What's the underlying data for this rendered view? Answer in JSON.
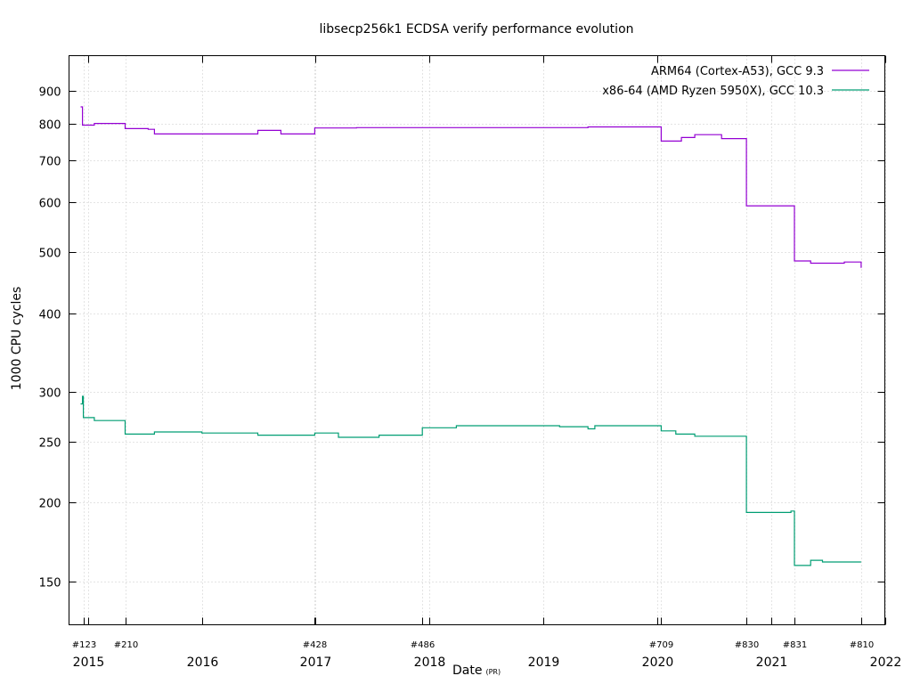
{
  "chart_data": {
    "type": "line",
    "title": "libsecp256k1 ECDSA verify performance evolution",
    "xlabel": "Date",
    "xlabel_suffix": "(PR)",
    "ylabel": "1000 CPU cycles",
    "y_scale": "log",
    "ylim": [
      128,
      1025
    ],
    "xlim": [
      "2014-11-01",
      "2022-01-01"
    ],
    "grid": true,
    "legend_position": "top-right",
    "y_ticks": [
      150,
      200,
      250,
      300,
      400,
      500,
      600,
      700,
      800,
      900
    ],
    "x_year_ticks": [
      {
        "date": "2015-01-01",
        "label": "2015"
      },
      {
        "date": "2016-01-01",
        "label": "2016"
      },
      {
        "date": "2017-01-01",
        "label": "2017"
      },
      {
        "date": "2018-01-01",
        "label": "2018"
      },
      {
        "date": "2019-01-01",
        "label": "2019"
      },
      {
        "date": "2020-01-01",
        "label": "2020"
      },
      {
        "date": "2021-01-01",
        "label": "2021"
      },
      {
        "date": "2022-01-01",
        "label": "2022"
      }
    ],
    "x_pr_ticks": [
      {
        "date": "2014-12-17",
        "label": "#123"
      },
      {
        "date": "2015-04-30",
        "label": "#210"
      },
      {
        "date": "2016-12-29",
        "label": "#428"
      },
      {
        "date": "2017-12-09",
        "label": "#486"
      },
      {
        "date": "2020-01-14",
        "label": "#709"
      },
      {
        "date": "2020-10-14",
        "label": "#830"
      },
      {
        "date": "2021-03-17",
        "label": "#831"
      },
      {
        "date": "2021-10-17",
        "label": "#810"
      }
    ],
    "series": [
      {
        "name": "ARM64 (Cortex-A53), GCC 9.3",
        "color": "#9400d3",
        "style": "step",
        "points": [
          [
            "2014-12-08",
            850
          ],
          [
            "2014-12-14",
            795
          ],
          [
            "2015-01-21",
            800
          ],
          [
            "2015-04-30",
            785
          ],
          [
            "2015-07-13",
            783
          ],
          [
            "2015-08-02",
            770
          ],
          [
            "2016-06-29",
            780
          ],
          [
            "2016-09-11",
            770
          ],
          [
            "2016-12-29",
            787
          ],
          [
            "2017-05-12",
            788
          ],
          [
            "2019-05-24",
            790
          ],
          [
            "2020-01-14",
            750
          ],
          [
            "2020-03-19",
            760
          ],
          [
            "2020-05-01",
            768
          ],
          [
            "2020-07-26",
            757
          ],
          [
            "2020-10-14",
            592
          ],
          [
            "2021-03-17",
            484
          ],
          [
            "2021-05-08",
            480
          ],
          [
            "2021-08-24",
            482
          ],
          [
            "2021-10-15",
            482
          ],
          [
            "2021-10-17",
            472
          ]
        ]
      },
      {
        "name": "x86-64 (AMD Ryzen 5950X), GCC 10.3",
        "color": "#009e73",
        "style": "step",
        "points": [
          [
            "2014-12-08",
            287
          ],
          [
            "2014-12-14",
            295
          ],
          [
            "2014-12-17",
            273
          ],
          [
            "2015-01-21",
            270
          ],
          [
            "2015-04-30",
            257
          ],
          [
            "2015-08-02",
            259
          ],
          [
            "2016-01-01",
            258
          ],
          [
            "2016-06-29",
            256
          ],
          [
            "2016-12-29",
            258
          ],
          [
            "2017-03-15",
            254
          ],
          [
            "2017-07-23",
            256
          ],
          [
            "2017-12-09",
            263
          ],
          [
            "2018-03-28",
            265
          ],
          [
            "2019-02-22",
            264
          ],
          [
            "2019-05-24",
            262
          ],
          [
            "2019-06-15",
            265
          ],
          [
            "2020-01-14",
            260
          ],
          [
            "2020-03-01",
            257
          ],
          [
            "2020-05-01",
            255
          ],
          [
            "2020-10-14",
            193
          ],
          [
            "2021-03-06",
            194
          ],
          [
            "2021-03-17",
            159
          ],
          [
            "2021-05-08",
            162
          ],
          [
            "2021-06-15",
            161
          ],
          [
            "2021-10-17",
            161
          ]
        ]
      }
    ]
  }
}
